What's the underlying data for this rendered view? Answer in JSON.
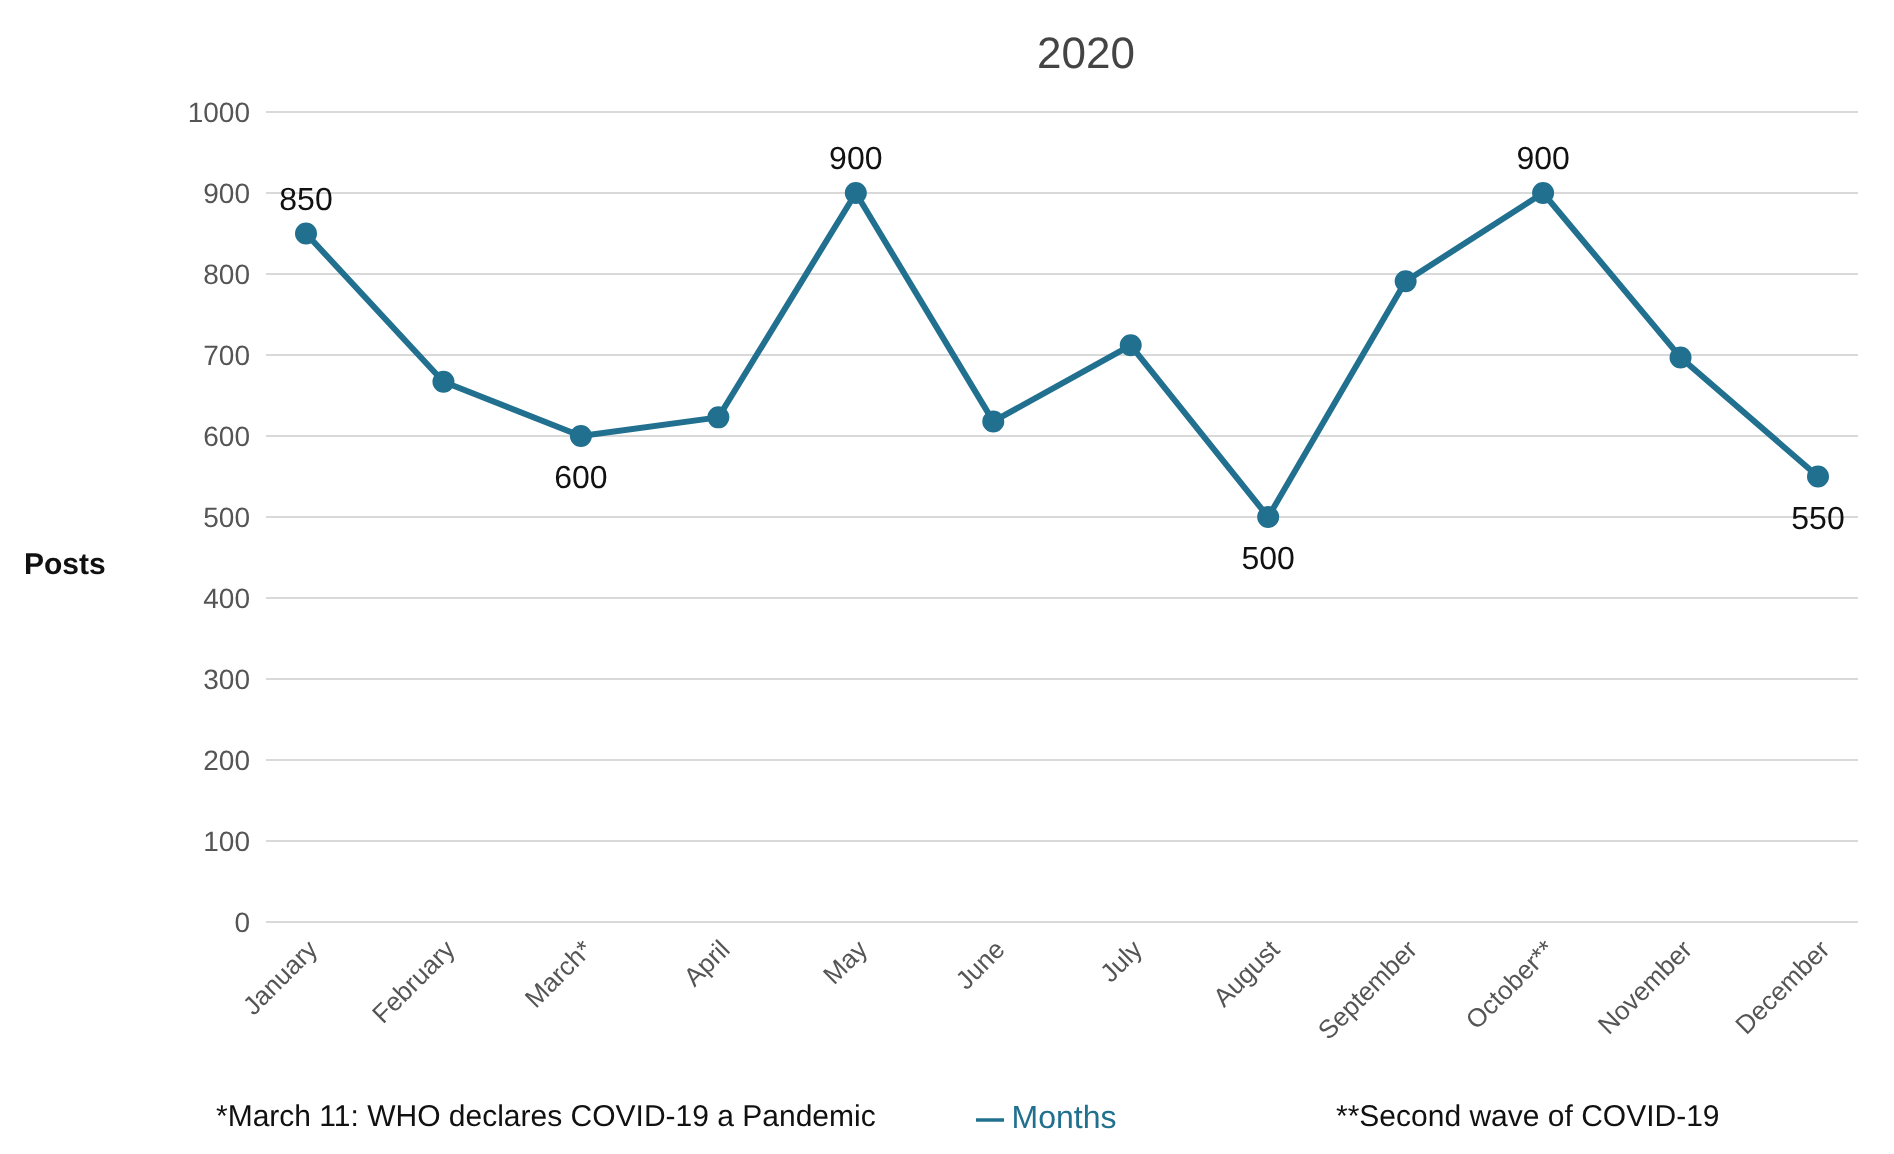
{
  "chart_data": {
    "type": "line",
    "title": "2020",
    "ylabel": "Posts",
    "categories": [
      "January",
      "February",
      "March*",
      "April",
      "May",
      "June",
      "July",
      "August",
      "September",
      "October**",
      "November",
      "December"
    ],
    "series": [
      {
        "name": "Months",
        "color": "#21708f",
        "values": [
          850,
          667,
          600,
          623,
          900,
          618,
          712,
          500,
          791,
          900,
          697,
          550
        ],
        "value_labels": [
          "850",
          null,
          "600",
          null,
          "900",
          null,
          null,
          "500",
          null,
          "900",
          null,
          "550"
        ]
      }
    ],
    "ylim": [
      0,
      1000
    ],
    "yticks": [
      0,
      100,
      200,
      300,
      400,
      500,
      600,
      700,
      800,
      900,
      1000
    ],
    "grid": "y",
    "legend": "bottom",
    "marker": "circle",
    "line_style": "solid",
    "annotations": [
      "*March 11: WHO declares COVID-19 a Pandemic",
      "**Second wave of COVID-19"
    ]
  }
}
